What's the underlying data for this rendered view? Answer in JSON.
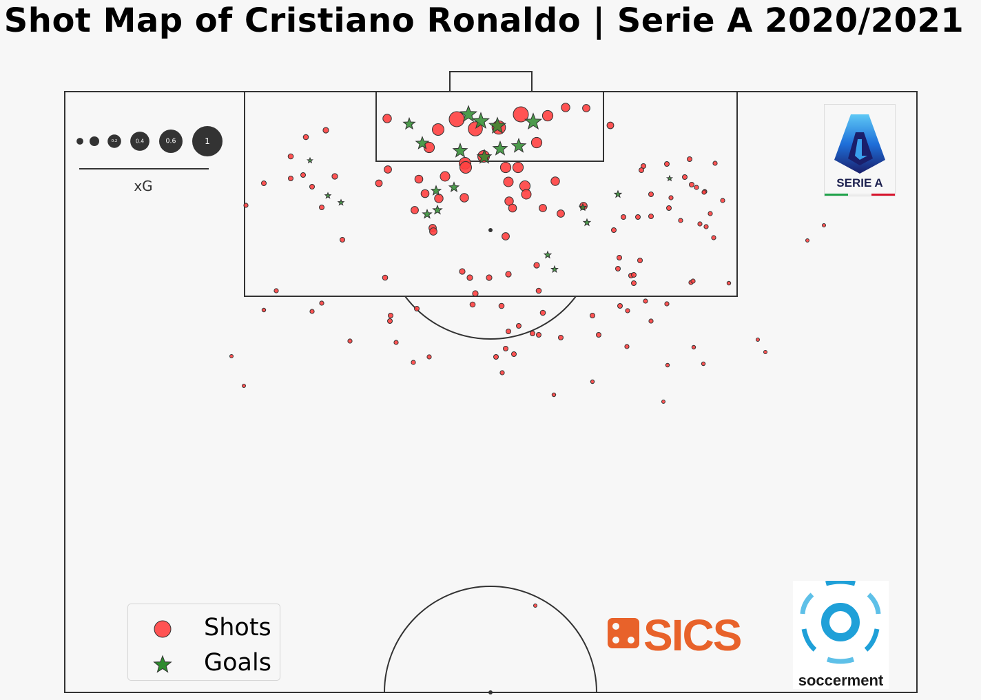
{
  "title": "Shot Map of Cristiano Ronaldo | Serie A 2020/2021",
  "xg_scale": {
    "label": "xG",
    "steps": [
      {
        "value": 0.05,
        "text": ""
      },
      {
        "value": 0.1,
        "text": ""
      },
      {
        "value": 0.2,
        "text": "0.2"
      },
      {
        "value": 0.4,
        "text": "0.4"
      },
      {
        "value": 0.6,
        "text": "0.6"
      },
      {
        "value": 1.0,
        "text": "1"
      }
    ]
  },
  "legend": {
    "shots_label": "Shots",
    "goals_label": "Goals"
  },
  "colors": {
    "shot": "#ff4040",
    "goal": "#2e8b2e",
    "pitch_line": "#333333",
    "background": "#f7f7f7"
  },
  "logos": {
    "serie_a_text": "SERIE A",
    "sics_text": "SICS",
    "soccerment_text": "soccerment"
  },
  "chart_data": {
    "type": "scatter",
    "title": "Shot Map of Cristiano Ronaldo | Serie A 2020/2021",
    "pitch": "half (vertical, attacking goal at top)",
    "size_encoding": "xG",
    "series": [
      {
        "name": "Shots",
        "points": [
          [
            562,
            172,
            0.08
          ],
          [
            636,
            188,
            0.15
          ],
          [
            663,
            173,
            0.25
          ],
          [
            690,
            187,
            0.22
          ],
          [
            724,
            185,
            0.2
          ],
          [
            756,
            166,
            0.25
          ],
          [
            795,
            168,
            0.12
          ],
          [
            821,
            156,
            0.08
          ],
          [
            851,
            157,
            0.06
          ],
          [
            886,
            182,
            0.05
          ],
          [
            623,
            214,
            0.12
          ],
          [
            779,
            207,
            0.12
          ],
          [
            675,
            237,
            0.15
          ],
          [
            676,
            243,
            0.15
          ],
          [
            702,
            227,
            0.15
          ],
          [
            734,
            243,
            0.12
          ],
          [
            752,
            243,
            0.12
          ],
          [
            646,
            256,
            0.1
          ],
          [
            608,
            260,
            0.07
          ],
          [
            563,
            246,
            0.06
          ],
          [
            550,
            266,
            0.05
          ],
          [
            738,
            264,
            0.1
          ],
          [
            762,
            270,
            0.12
          ],
          [
            764,
            282,
            0.1
          ],
          [
            806,
            263,
            0.08
          ],
          [
            617,
            281,
            0.07
          ],
          [
            637,
            288,
            0.08
          ],
          [
            674,
            287,
            0.08
          ],
          [
            739,
            292,
            0.08
          ],
          [
            744,
            302,
            0.07
          ],
          [
            788,
            302,
            0.06
          ],
          [
            814,
            310,
            0.06
          ],
          [
            847,
            299,
            0.06
          ],
          [
            602,
            305,
            0.06
          ],
          [
            628,
            331,
            0.06
          ],
          [
            629,
            336,
            0.06
          ],
          [
            734,
            343,
            0.06
          ],
          [
            444,
            199,
            0.03
          ],
          [
            473,
            189,
            0.035
          ],
          [
            422,
            227,
            0.03
          ],
          [
            383,
            266,
            0.025
          ],
          [
            422,
            259,
            0.025
          ],
          [
            440,
            254,
            0.025
          ],
          [
            453,
            271,
            0.025
          ],
          [
            486,
            256,
            0.035
          ],
          [
            467,
            301,
            0.025
          ],
          [
            497,
            348,
            0.025
          ],
          [
            357,
            298,
            0.02
          ],
          [
            934,
            241,
            0.025
          ],
          [
            931,
            247,
            0.025
          ],
          [
            968,
            238,
            0.025
          ],
          [
            1001,
            231,
            0.025
          ],
          [
            1038,
            237,
            0.02
          ],
          [
            994,
            257,
            0.025
          ],
          [
            1004,
            268,
            0.025
          ],
          [
            1011,
            272,
            0.02
          ],
          [
            1023,
            278,
            0.02
          ],
          [
            1022,
            279,
            0.02
          ],
          [
            945,
            282,
            0.025
          ],
          [
            974,
            287,
            0.02
          ],
          [
            1049,
            291,
            0.02
          ],
          [
            971,
            302,
            0.025
          ],
          [
            1031,
            310,
            0.02
          ],
          [
            905,
            315,
            0.025
          ],
          [
            926,
            315,
            0.025
          ],
          [
            945,
            314,
            0.025
          ],
          [
            988,
            320,
            0.02
          ],
          [
            1016,
            325,
            0.02
          ],
          [
            1025,
            329,
            0.02
          ],
          [
            891,
            334,
            0.025
          ],
          [
            1036,
            345,
            0.02
          ],
          [
            899,
            374,
            0.025
          ],
          [
            929,
            378,
            0.025
          ],
          [
            897,
            390,
            0.025
          ],
          [
            916,
            400,
            0.025
          ],
          [
            920,
            399,
            0.025
          ],
          [
            920,
            411,
            0.025
          ],
          [
            1003,
            410,
            0.02
          ],
          [
            1006,
            408,
            0.02
          ],
          [
            1058,
            411,
            0.015
          ],
          [
            671,
            394,
            0.035
          ],
          [
            682,
            403,
            0.035
          ],
          [
            710,
            403,
            0.035
          ],
          [
            738,
            398,
            0.035
          ],
          [
            779,
            385,
            0.035
          ],
          [
            782,
            422,
            0.03
          ],
          [
            690,
            426,
            0.035
          ],
          [
            559,
            403,
            0.03
          ],
          [
            401,
            422,
            0.02
          ],
          [
            467,
            440,
            0.02
          ],
          [
            383,
            450,
            0.015
          ],
          [
            453,
            452,
            0.02
          ],
          [
            567,
            458,
            0.025
          ],
          [
            566,
            466,
            0.025
          ],
          [
            605,
            448,
            0.025
          ],
          [
            686,
            442,
            0.03
          ],
          [
            728,
            444,
            0.03
          ],
          [
            788,
            454,
            0.03
          ],
          [
            860,
            458,
            0.025
          ],
          [
            900,
            444,
            0.025
          ],
          [
            911,
            451,
            0.02
          ],
          [
            937,
            437,
            0.02
          ],
          [
            968,
            441,
            0.02
          ],
          [
            945,
            466,
            0.02
          ],
          [
            753,
            473,
            0.025
          ],
          [
            738,
            481,
            0.025
          ],
          [
            773,
            484,
            0.025
          ],
          [
            782,
            486,
            0.025
          ],
          [
            814,
            490,
            0.025
          ],
          [
            869,
            486,
            0.025
          ],
          [
            508,
            495,
            0.02
          ],
          [
            575,
            497,
            0.02
          ],
          [
            734,
            506,
            0.025
          ],
          [
            746,
            514,
            0.025
          ],
          [
            720,
            518,
            0.025
          ],
          [
            623,
            518,
            0.02
          ],
          [
            600,
            526,
            0.02
          ],
          [
            910,
            503,
            0.02
          ],
          [
            1007,
            504,
            0.015
          ],
          [
            969,
            530,
            0.015
          ],
          [
            1021,
            528,
            0.015
          ],
          [
            1100,
            493,
            0.012
          ],
          [
            1111,
            511,
            0.012
          ],
          [
            729,
            541,
            0.02
          ],
          [
            860,
            554,
            0.015
          ],
          [
            804,
            573,
            0.015
          ],
          [
            963,
            583,
            0.012
          ],
          [
            336,
            517,
            0.012
          ],
          [
            354,
            560,
            0.012
          ],
          [
            1172,
            349,
            0.012
          ],
          [
            1196,
            327,
            0.012
          ],
          [
            777,
            879,
            0.005
          ]
        ]
      },
      {
        "name": "Goals",
        "points": [
          [
            594,
            180,
            0.1
          ],
          [
            680,
            166,
            0.2
          ],
          [
            698,
            176,
            0.2
          ],
          [
            722,
            183,
            0.2
          ],
          [
            774,
            177,
            0.2
          ],
          [
            613,
            208,
            0.12
          ],
          [
            668,
            219,
            0.15
          ],
          [
            703,
            228,
            0.15
          ],
          [
            726,
            216,
            0.15
          ],
          [
            753,
            212,
            0.15
          ],
          [
            633,
            277,
            0.07
          ],
          [
            659,
            272,
            0.07
          ],
          [
            635,
            305,
            0.06
          ],
          [
            620,
            311,
            0.06
          ],
          [
            450,
            233,
            0.02
          ],
          [
            476,
            284,
            0.025
          ],
          [
            495,
            294,
            0.025
          ],
          [
            846,
            301,
            0.035
          ],
          [
            852,
            323,
            0.035
          ],
          [
            897,
            282,
            0.035
          ],
          [
            972,
            259,
            0.02
          ],
          [
            795,
            370,
            0.035
          ],
          [
            805,
            391,
            0.03
          ]
        ]
      }
    ]
  }
}
